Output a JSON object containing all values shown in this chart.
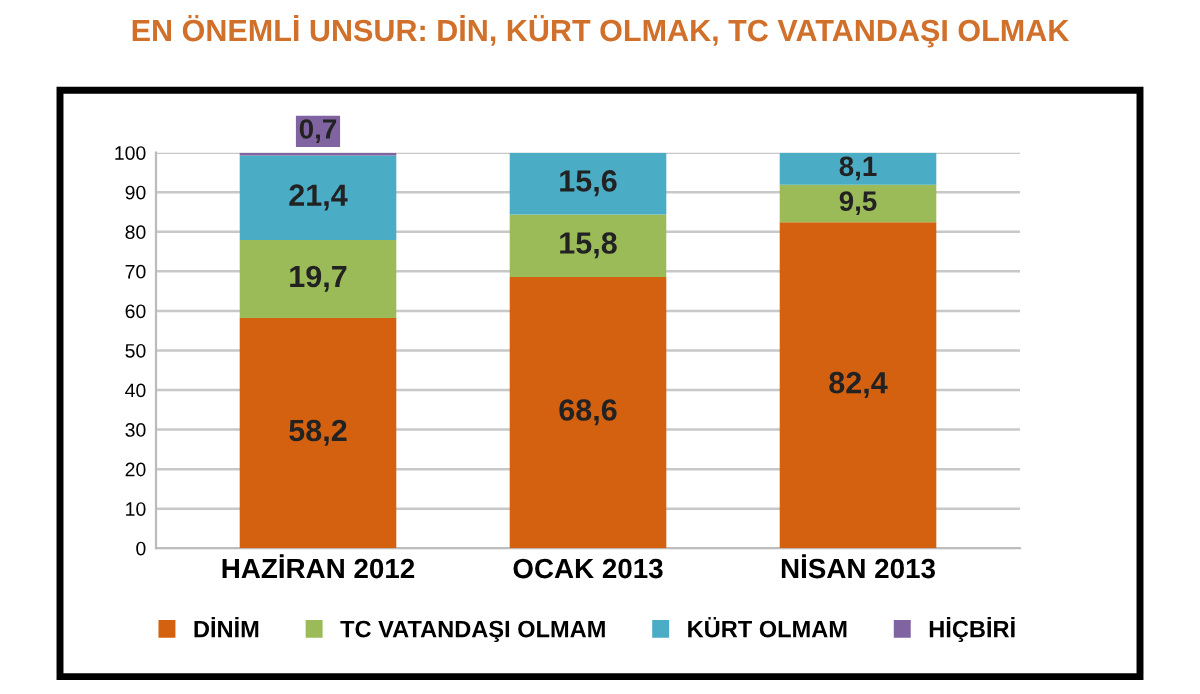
{
  "chart_data": {
    "type": "bar",
    "title": "EN ÖNEMLİ UNSUR: DİN, KÜRT OLMAK, TC VATANDAŞI OLMAK",
    "categories": [
      "HAZİRAN 2012",
      "OCAK 2013",
      "NİSAN 2013"
    ],
    "stacked": true,
    "series": [
      {
        "name": "DİNİM",
        "color": "#d4610f",
        "values": [
          58.2,
          68.6,
          82.4
        ],
        "value_labels": [
          "58,2",
          "68,6",
          "82,4"
        ]
      },
      {
        "name": "TC VATANDAŞI OLMAM",
        "color": "#9bbb59",
        "values": [
          19.7,
          15.8,
          9.5
        ],
        "value_labels": [
          "19,7",
          "15,8",
          "9,5"
        ]
      },
      {
        "name": "KÜRT OLMAM",
        "color": "#4bacc6",
        "values": [
          21.4,
          15.6,
          8.1
        ],
        "value_labels": [
          "21,4",
          "15,6",
          "8,1"
        ]
      },
      {
        "name": "HİÇBİRİ",
        "color": "#8064a2",
        "values": [
          0.7,
          null,
          null
        ],
        "value_labels": [
          "0,7",
          null,
          null
        ]
      }
    ],
    "ylim": [
      0,
      100
    ],
    "yticks": [
      0,
      10,
      20,
      30,
      40,
      50,
      60,
      70,
      80,
      90,
      100
    ],
    "grid": "y",
    "legend": "bottom"
  }
}
